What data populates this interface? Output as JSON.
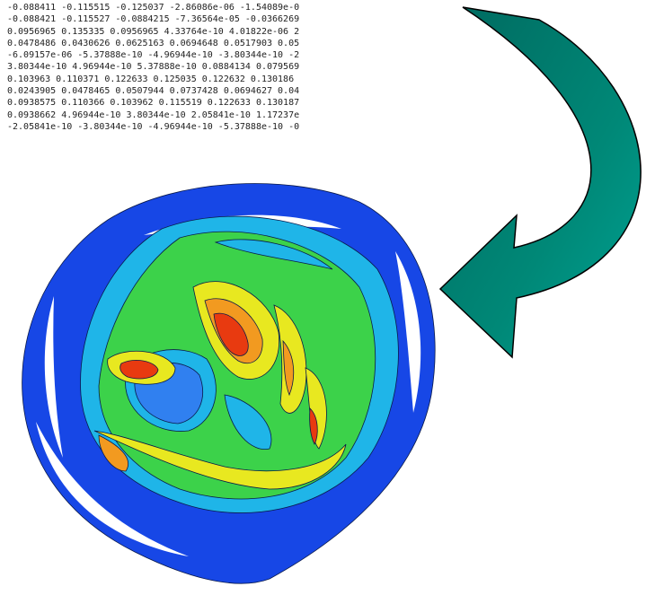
{
  "text_lines": [
    "-0.088411 -0.115515 -0.125037 -2.86086e-06 -1.54089e-0",
    "-0.088421 -0.115527 -0.0884215 -7.36564e-05 -0.0366269",
    "0.0956965 0.135335 0.0956965 4.33764e-10 4.01822e-06 2",
    "0.0478486 0.0430626 0.0625163 0.0694648 0.0517903 0.05",
    "-6.09157e-06 -5.37888e-10 -4.96944e-10 -3.80344e-10 -2",
    "3.80344e-10 4.96944e-10 5.37888e-10 0.0884134 0.079569",
    "0.103963 0.110371 0.122633 0.125035 0.122632 0.130186",
    "0.0243905 0.0478465 0.0507944 0.0737428 0.0694627 0.04",
    "0.0938575 0.110366 0.103962 0.115519 0.122633 0.130187",
    "0.0938662 4.96944e-10 3.80344e-10 2.05841e-10 1.17237e",
    "-2.05841e-10 -3.80344e-10 -4.96944e-10 -5.37888e-10 -0"
  ]
}
